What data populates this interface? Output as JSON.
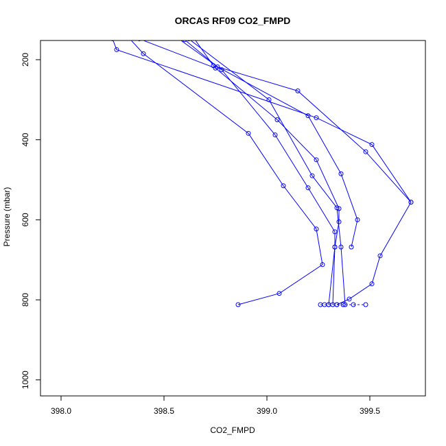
{
  "chart_data": {
    "type": "line",
    "title": "ORCAS RF09 CO2_FMPD",
    "xlabel": "CO2_FMPD",
    "ylabel": "Pressure (mbar)",
    "xlim": [
      397.9,
      399.77
    ],
    "ylim": [
      1040,
      152
    ],
    "y_inverted": true,
    "xticks": [
      398.0,
      398.5,
      399.0,
      399.5
    ],
    "xtick_labels": [
      "398.0",
      "398.5",
      "399.0",
      "399.5"
    ],
    "yticks": [
      200,
      400,
      600,
      800,
      1000
    ],
    "ytick_labels": [
      "200",
      "400",
      "600",
      "800",
      "1000"
    ],
    "grid": false,
    "color": "#0000ff",
    "series": [
      {
        "points": [
          [
            398.25,
            148
          ],
          [
            398.27,
            175
          ],
          [
            399.24,
            345
          ],
          [
            399.51,
            412
          ],
          [
            399.7,
            556
          ],
          [
            399.55,
            690
          ],
          [
            399.51,
            760
          ],
          [
            399.4,
            798
          ],
          [
            399.34,
            812
          ]
        ]
      },
      {
        "points": [
          [
            398.32,
            140
          ],
          [
            398.4,
            185
          ],
          [
            398.91,
            384
          ],
          [
            399.08,
            515
          ],
          [
            399.24,
            623
          ],
          [
            399.27,
            712
          ],
          [
            399.06,
            784
          ],
          [
            398.86,
            812
          ]
        ]
      },
      {
        "points": [
          [
            398.38,
            148
          ],
          [
            398.75,
            221
          ],
          [
            399.05,
            350
          ],
          [
            399.24,
            450
          ],
          [
            399.35,
            572
          ],
          [
            399.35,
            605
          ],
          [
            399.33,
            668
          ],
          [
            399.32,
            812
          ]
        ]
      },
      {
        "points": [
          [
            398.55,
            140
          ],
          [
            398.78,
            225
          ],
          [
            399.04,
            388
          ],
          [
            399.2,
            520
          ],
          [
            399.33,
            630
          ],
          [
            399.33,
            668
          ],
          [
            399.3,
            812
          ]
        ]
      },
      {
        "points": [
          [
            398.62,
            148
          ],
          [
            399.01,
            300
          ],
          [
            399.22,
            490
          ],
          [
            399.34,
            570
          ],
          [
            399.36,
            668
          ],
          [
            399.38,
            812
          ]
        ]
      },
      {
        "points": [
          [
            398.63,
            135
          ],
          [
            398.74,
            215
          ],
          [
            399.15,
            278
          ],
          [
            399.48,
            430
          ],
          [
            399.7,
            556
          ]
        ]
      },
      {
        "points": [
          [
            398.6,
            150
          ],
          [
            398.76,
            218
          ],
          [
            399.2,
            340
          ],
          [
            399.36,
            485
          ],
          [
            399.44,
            600
          ],
          [
            399.41,
            668
          ]
        ]
      },
      {
        "points": [
          [
            399.26,
            812
          ],
          [
            399.28,
            812
          ],
          [
            399.3,
            812
          ],
          [
            399.34,
            812
          ],
          [
            399.37,
            812
          ],
          [
            399.42,
            812
          ],
          [
            399.48,
            812
          ]
        ],
        "dashed": true
      }
    ]
  }
}
